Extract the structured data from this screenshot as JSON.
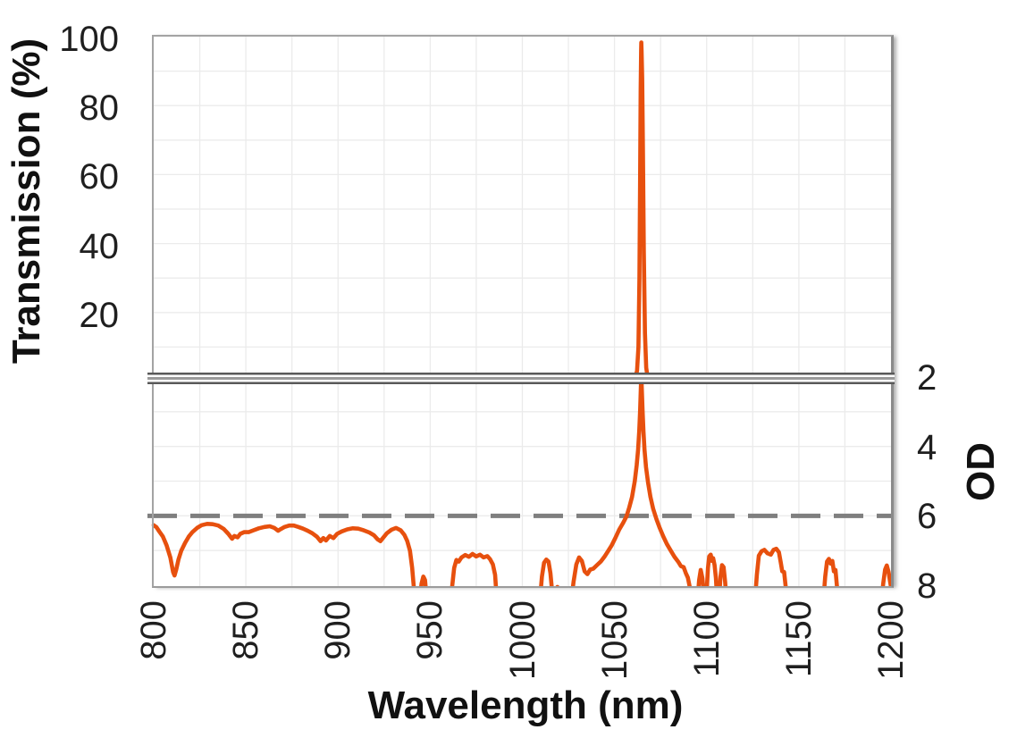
{
  "chart_data": {
    "type": "line",
    "title": "",
    "xlabel": "Wavelength (nm)",
    "ylabel_left": "Transmission (%)",
    "ylabel_right": "OD",
    "x_range": [
      800,
      1200
    ],
    "x_ticks": [
      800,
      850,
      900,
      950,
      1000,
      1050,
      1100,
      1150,
      1200
    ],
    "x_gridline_step_nm": 25,
    "axis_break": true,
    "legend": "none",
    "top_panel": {
      "ylim": [
        0,
        100
      ],
      "ticks": [
        100,
        80,
        60,
        40,
        20
      ],
      "gridline_step": 10
    },
    "bottom_panel": {
      "ylim_top_to_bottom": [
        2,
        8
      ],
      "ticks": [
        2,
        4,
        6,
        8
      ],
      "gridline_step": 1
    },
    "reference_line": {
      "value_od": 6,
      "style": "dashed"
    },
    "colors": {
      "line": "#E7500E",
      "grid": "#EBEBEB",
      "axis": "#A0A0A0",
      "reference": "#7F7F7F",
      "break_line": "#595959",
      "text": "#1F1F1F"
    },
    "series": [
      {
        "name": "transmission",
        "panel": "top",
        "unit": "%",
        "color": "#E7500E",
        "points": [
          [
            800,
            0
          ],
          [
            1050,
            0
          ],
          [
            1055,
            0
          ],
          [
            1059,
            0.2
          ],
          [
            1061,
            0.8
          ],
          [
            1062.2,
            3
          ],
          [
            1063,
            10
          ],
          [
            1063.5,
            30
          ],
          [
            1063.9,
            60
          ],
          [
            1064.2,
            85
          ],
          [
            1064.45,
            96
          ],
          [
            1064.55,
            98.3
          ],
          [
            1064.7,
            96
          ],
          [
            1065,
            88
          ],
          [
            1065.4,
            68
          ],
          [
            1065.9,
            38
          ],
          [
            1066.5,
            14
          ],
          [
            1067.2,
            4
          ],
          [
            1068,
            1
          ],
          [
            1069.5,
            0.2
          ],
          [
            1072,
            0
          ],
          [
            1200,
            0
          ]
        ]
      },
      {
        "name": "optical-density",
        "panel": "bottom",
        "unit": "OD",
        "color": "#E7500E",
        "points": [
          [
            800,
            6.27
          ],
          [
            801.5,
            6.33
          ],
          [
            803,
            6.45
          ],
          [
            805,
            6.6
          ],
          [
            807,
            6.85
          ],
          [
            809,
            7.2
          ],
          [
            810.5,
            7.62
          ],
          [
            811.3,
            7.72
          ],
          [
            812.2,
            7.55
          ],
          [
            813.5,
            7.25
          ],
          [
            815,
            7.0
          ],
          [
            817,
            6.78
          ],
          [
            819,
            6.6
          ],
          [
            821,
            6.47
          ],
          [
            823.5,
            6.35
          ],
          [
            826,
            6.27
          ],
          [
            829,
            6.23
          ],
          [
            832,
            6.24
          ],
          [
            835,
            6.28
          ],
          [
            838,
            6.38
          ],
          [
            840.5,
            6.52
          ],
          [
            842.5,
            6.66
          ],
          [
            843.8,
            6.58
          ],
          [
            845.5,
            6.62
          ],
          [
            847,
            6.52
          ],
          [
            849,
            6.47
          ],
          [
            851.5,
            6.47
          ],
          [
            854,
            6.42
          ],
          [
            857,
            6.36
          ],
          [
            860,
            6.32
          ],
          [
            863,
            6.3
          ],
          [
            865.5,
            6.35
          ],
          [
            867.5,
            6.43
          ],
          [
            869,
            6.38
          ],
          [
            871,
            6.32
          ],
          [
            873.5,
            6.28
          ],
          [
            876,
            6.28
          ],
          [
            878.5,
            6.32
          ],
          [
            881,
            6.37
          ],
          [
            883.5,
            6.43
          ],
          [
            886,
            6.5
          ],
          [
            888.5,
            6.6
          ],
          [
            890.5,
            6.73
          ],
          [
            892,
            6.64
          ],
          [
            893.5,
            6.71
          ],
          [
            895.5,
            6.58
          ],
          [
            897.5,
            6.64
          ],
          [
            899.5,
            6.52
          ],
          [
            902,
            6.45
          ],
          [
            905,
            6.39
          ],
          [
            908,
            6.36
          ],
          [
            911,
            6.37
          ],
          [
            914,
            6.42
          ],
          [
            917,
            6.48
          ],
          [
            919.5,
            6.56
          ],
          [
            921.5,
            6.68
          ],
          [
            923,
            6.73
          ],
          [
            924.5,
            6.63
          ],
          [
            926.5,
            6.5
          ],
          [
            929,
            6.4
          ],
          [
            931.5,
            6.35
          ],
          [
            934,
            6.42
          ],
          [
            936,
            6.55
          ],
          [
            937.5,
            6.72
          ],
          [
            939,
            7.0
          ],
          [
            940.2,
            7.5
          ],
          [
            941.2,
            8.1
          ],
          [
            941.8,
            8.45
          ],
          [
            944.3,
            8.45
          ],
          [
            945.3,
            7.95
          ],
          [
            946.3,
            7.75
          ],
          [
            947.2,
            7.85
          ],
          [
            948.2,
            8.45
          ],
          [
            961,
            8.45
          ],
          [
            962,
            8.0
          ],
          [
            963,
            7.5
          ],
          [
            964.2,
            7.27
          ],
          [
            965.5,
            7.32
          ],
          [
            967,
            7.2
          ],
          [
            969,
            7.13
          ],
          [
            971,
            7.18
          ],
          [
            973,
            7.1
          ],
          [
            975,
            7.17
          ],
          [
            977,
            7.12
          ],
          [
            979,
            7.2
          ],
          [
            981,
            7.16
          ],
          [
            982.5,
            7.25
          ],
          [
            984,
            7.4
          ],
          [
            985.2,
            7.7
          ],
          [
            986.2,
            8.45
          ],
          [
            1009.5,
            8.45
          ],
          [
            1010.6,
            7.75
          ],
          [
            1011.8,
            7.35
          ],
          [
            1013,
            7.26
          ],
          [
            1014.2,
            7.32
          ],
          [
            1015.2,
            7.65
          ],
          [
            1016.2,
            8.2
          ],
          [
            1016.9,
            8.45
          ],
          [
            1018.2,
            8.45
          ],
          [
            1019,
            8.05
          ],
          [
            1020,
            8.45
          ],
          [
            1026.5,
            8.45
          ],
          [
            1027.8,
            7.9
          ],
          [
            1029.3,
            7.4
          ],
          [
            1030.8,
            7.2
          ],
          [
            1032.3,
            7.3
          ],
          [
            1033.8,
            7.6
          ],
          [
            1035.3,
            7.68
          ],
          [
            1036.8,
            7.55
          ],
          [
            1038.5,
            7.52
          ],
          [
            1040.5,
            7.42
          ],
          [
            1042.5,
            7.32
          ],
          [
            1044.5,
            7.18
          ],
          [
            1046.5,
            7.02
          ],
          [
            1048.5,
            6.85
          ],
          [
            1050.5,
            6.63
          ],
          [
            1052.5,
            6.4
          ],
          [
            1054.5,
            6.22
          ],
          [
            1056.5,
            6.02
          ],
          [
            1058,
            5.76
          ],
          [
            1059.5,
            5.46
          ],
          [
            1061,
            5.0
          ],
          [
            1062,
            4.55
          ],
          [
            1062.8,
            4.1
          ],
          [
            1063.4,
            3.55
          ],
          [
            1063.9,
            2.95
          ],
          [
            1064.3,
            2.3
          ],
          [
            1064.55,
            1.9
          ],
          [
            1064.8,
            2.3
          ],
          [
            1065.2,
            2.95
          ],
          [
            1065.7,
            3.55
          ],
          [
            1066.3,
            4.1
          ],
          [
            1067.1,
            4.6
          ],
          [
            1068.2,
            5.05
          ],
          [
            1069.5,
            5.45
          ],
          [
            1071,
            5.8
          ],
          [
            1072.8,
            6.1
          ],
          [
            1074.5,
            6.35
          ],
          [
            1076.5,
            6.6
          ],
          [
            1078.5,
            6.82
          ],
          [
            1080.5,
            7.0
          ],
          [
            1082.5,
            7.18
          ],
          [
            1084.5,
            7.32
          ],
          [
            1086,
            7.45
          ],
          [
            1087.5,
            7.48
          ],
          [
            1088.7,
            7.65
          ],
          [
            1089.8,
            7.78
          ],
          [
            1090.8,
            8.05
          ],
          [
            1091.6,
            8.45
          ],
          [
            1095,
            8.45
          ],
          [
            1095.9,
            7.85
          ],
          [
            1096.8,
            7.56
          ],
          [
            1097.7,
            7.8
          ],
          [
            1098.5,
            8.3
          ],
          [
            1099.3,
            8.45
          ],
          [
            1099.9,
            8.3
          ],
          [
            1100.7,
            7.5
          ],
          [
            1101.4,
            7.17
          ],
          [
            1102.2,
            7.12
          ],
          [
            1102.9,
            7.3
          ],
          [
            1103.5,
            7.22
          ],
          [
            1104.3,
            7.42
          ],
          [
            1105,
            7.8
          ],
          [
            1105.7,
            8.45
          ],
          [
            1106.7,
            8.45
          ],
          [
            1107.5,
            7.75
          ],
          [
            1108.3,
            7.42
          ],
          [
            1109.2,
            7.48
          ],
          [
            1110,
            7.9
          ],
          [
            1110.8,
            8.45
          ],
          [
            1126.2,
            8.45
          ],
          [
            1127.2,
            7.7
          ],
          [
            1128.3,
            7.15
          ],
          [
            1129.8,
            7.02
          ],
          [
            1131.3,
            6.98
          ],
          [
            1133,
            7.08
          ],
          [
            1134.8,
            7.12
          ],
          [
            1136.3,
            6.98
          ],
          [
            1137.8,
            6.95
          ],
          [
            1139.2,
            7.05
          ],
          [
            1140.2,
            7.35
          ],
          [
            1141,
            7.6
          ],
          [
            1142,
            7.62
          ],
          [
            1142.8,
            8.0
          ],
          [
            1143.6,
            8.45
          ],
          [
            1163.3,
            8.45
          ],
          [
            1164.3,
            7.75
          ],
          [
            1165.3,
            7.32
          ],
          [
            1166.3,
            7.24
          ],
          [
            1167.3,
            7.38
          ],
          [
            1168.2,
            7.3
          ],
          [
            1169,
            7.6
          ],
          [
            1169.9,
            7.56
          ],
          [
            1170.7,
            8.05
          ],
          [
            1171.4,
            8.45
          ],
          [
            1194.8,
            8.45
          ],
          [
            1195.8,
            7.95
          ],
          [
            1196.8,
            7.55
          ],
          [
            1197.7,
            7.43
          ],
          [
            1198.7,
            7.62
          ],
          [
            1199.5,
            7.9
          ],
          [
            1200,
            8.05
          ]
        ]
      }
    ]
  }
}
